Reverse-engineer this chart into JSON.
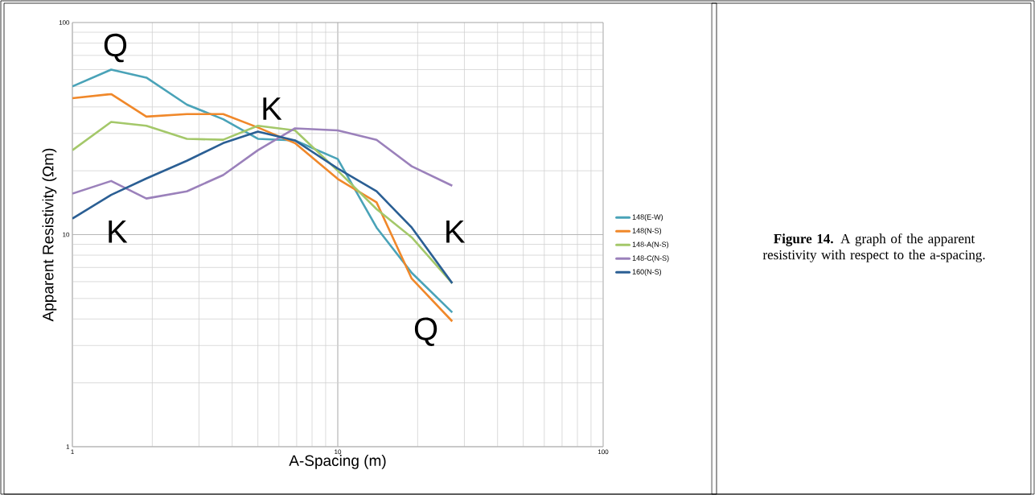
{
  "chart_data": {
    "type": "line",
    "xlabel": "A-Spacing (m)",
    "ylabel": "Apparent Resistivity (Ωm)",
    "log": "xy",
    "grid": true,
    "legend": "right",
    "x": [
      1,
      1.4,
      1.9,
      2.7,
      3.7,
      5,
      6.9,
      10,
      14,
      19,
      27
    ],
    "xlim": [
      1,
      100
    ],
    "ylim": [
      1,
      100
    ],
    "xticks": [
      1,
      10,
      100
    ],
    "yticks": [
      1,
      10,
      100
    ],
    "series": [
      {
        "name": "148(E-W)",
        "color": "#4aa3b8",
        "values": [
          50,
          60,
          55,
          41,
          35,
          28.3,
          27.8,
          22.7,
          10.8,
          6.6,
          4.3
        ]
      },
      {
        "name": "148(N-S)",
        "color": "#f0882a",
        "values": [
          44,
          46,
          36,
          37,
          37,
          32,
          27,
          18.3,
          14.2,
          6.2,
          3.9
        ]
      },
      {
        "name": "148-A(N-S)",
        "color": "#a4c86a",
        "values": [
          25,
          34,
          32.6,
          28.3,
          28,
          32.6,
          31,
          20,
          13.2,
          9.7,
          5.9
        ]
      },
      {
        "name": "148-C(N-S)",
        "color": "#9b81bb",
        "values": [
          15.6,
          17.9,
          14.8,
          16,
          19.1,
          25,
          31.7,
          31,
          28,
          21,
          17
        ]
      },
      {
        "name": "160(N-S)",
        "color": "#2b5f94",
        "values": [
          11.9,
          15.4,
          18.4,
          22.3,
          27,
          30.6,
          27.8,
          20.5,
          16,
          10.8,
          5.9
        ]
      }
    ],
    "annotations": [
      "Q",
      "K",
      "K",
      "K",
      "Q",
      "**Figure 14.** A graph of the apparent resistivity with respect to the a-spacing."
    ]
  }
}
